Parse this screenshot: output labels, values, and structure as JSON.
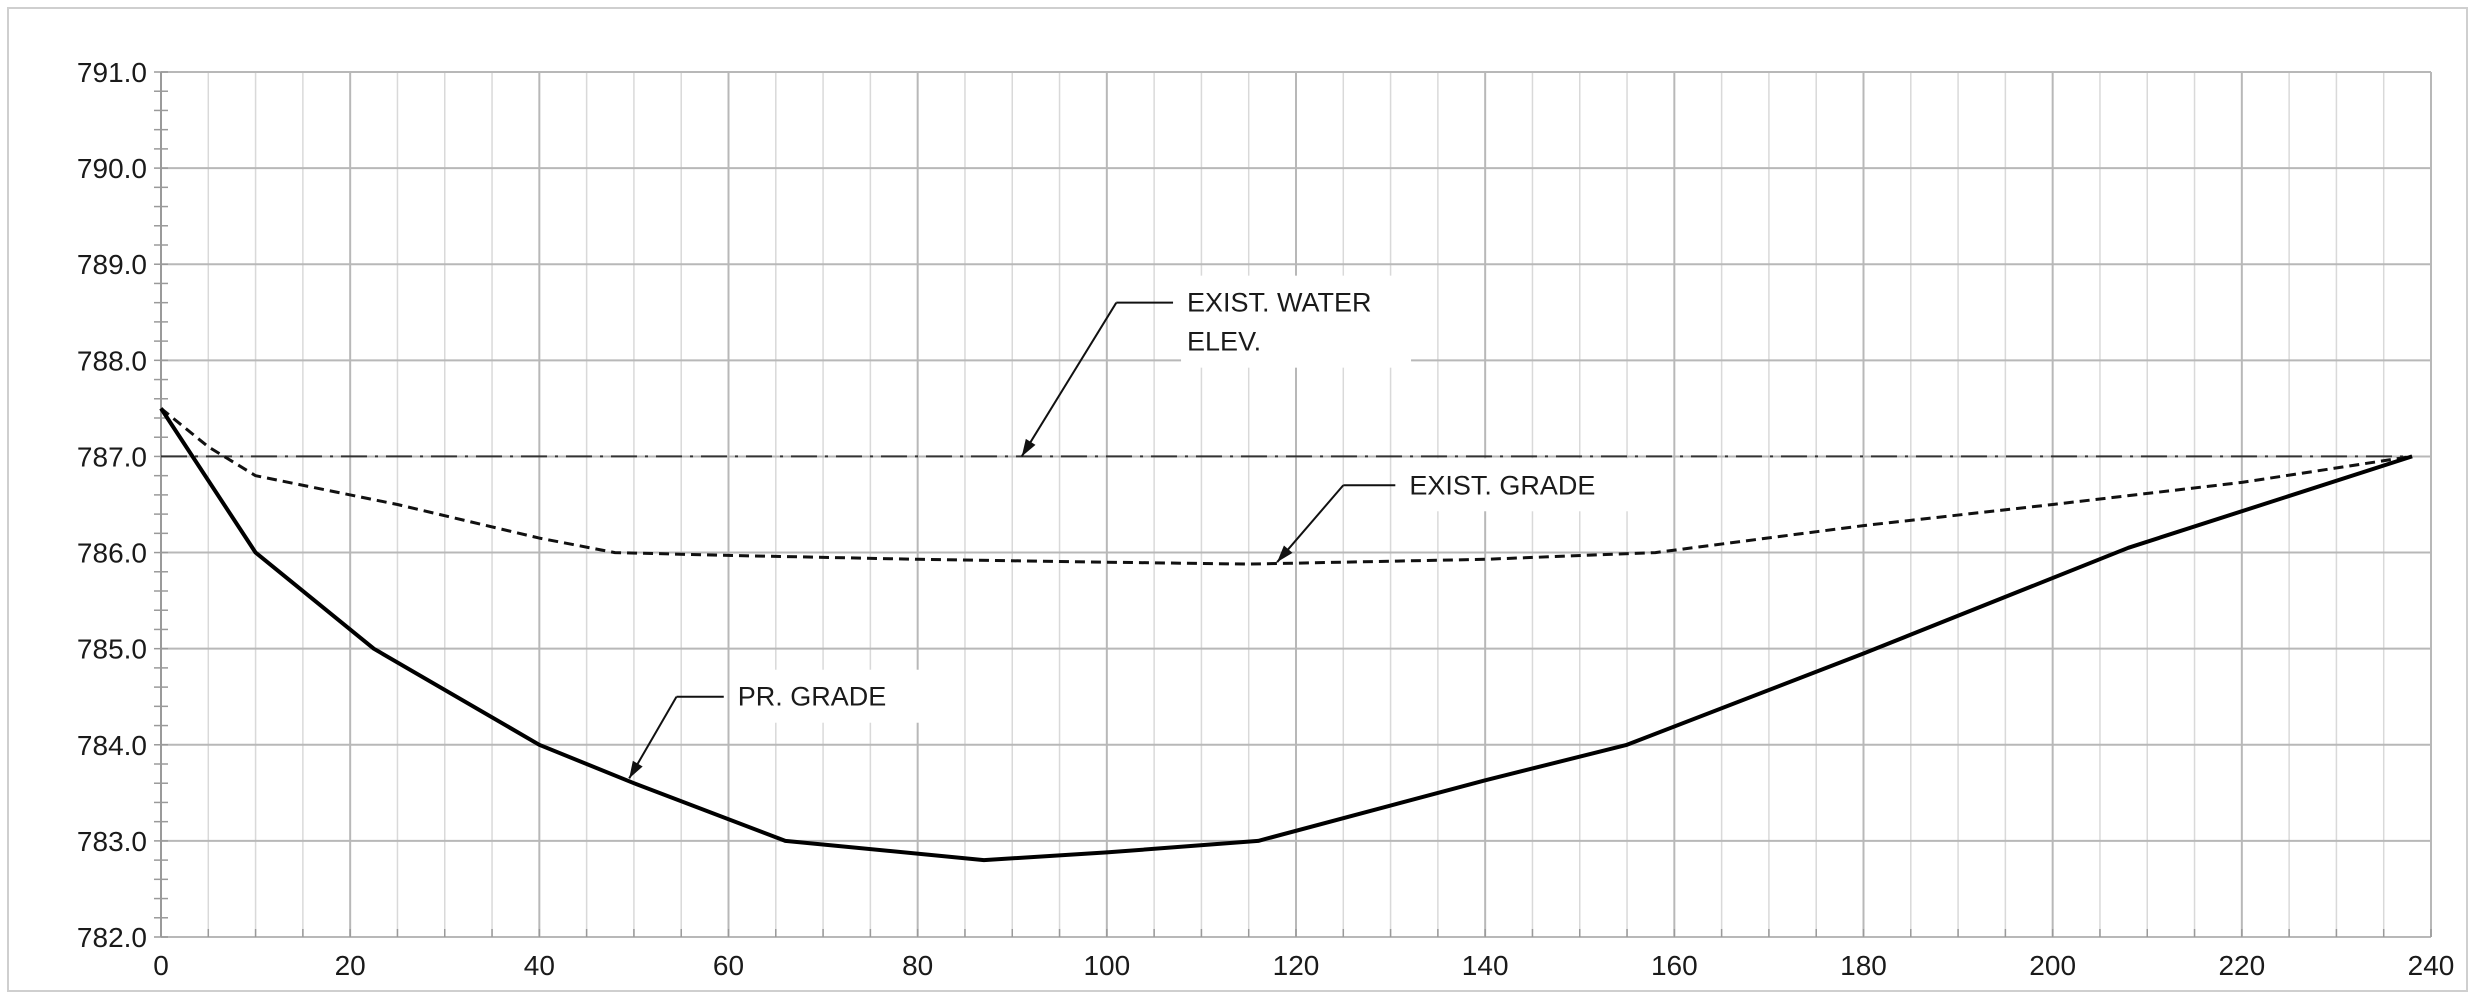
{
  "chart_data": {
    "type": "line",
    "title": "",
    "xlabel": "",
    "ylabel": "",
    "xlim": [
      0,
      240
    ],
    "ylim": [
      782.0,
      791.0
    ],
    "grid": true,
    "x_ticks": [
      "0",
      "20",
      "40",
      "60",
      "80",
      "100",
      "120",
      "140",
      "160",
      "180",
      "200",
      "220",
      "240"
    ],
    "y_ticks": [
      "782.0",
      "783.0",
      "784.0",
      "785.0",
      "786.0",
      "787.0",
      "788.0",
      "789.0",
      "790.0",
      "791.0"
    ],
    "series": [
      {
        "name": "EXIST. WATER ELEV.",
        "style": "dash-dot",
        "color": "#333333",
        "x": [
          0,
          238
        ],
        "y": [
          787.0,
          787.0
        ]
      },
      {
        "name": "EXIST. GRADE",
        "style": "dashed",
        "color": "#111111",
        "x": [
          0,
          5,
          10,
          25,
          40,
          48,
          60,
          80,
          100,
          115,
          140,
          158,
          180,
          200,
          220,
          238
        ],
        "y": [
          787.5,
          787.1,
          786.8,
          786.5,
          786.15,
          786.0,
          785.97,
          785.93,
          785.9,
          785.88,
          785.93,
          786.0,
          786.28,
          786.5,
          786.73,
          787.0
        ]
      },
      {
        "name": "PR. GRADE",
        "style": "solid",
        "color": "#000000",
        "x": [
          0,
          10,
          22.5,
          40,
          50,
          66,
          87,
          100,
          116,
          140,
          155,
          180,
          208,
          238
        ],
        "y": [
          787.5,
          786.0,
          785.0,
          784.0,
          783.6,
          783.0,
          782.8,
          782.88,
          783.0,
          783.63,
          784.0,
          784.95,
          786.05,
          787.0
        ]
      }
    ],
    "annotations": [
      {
        "lines": [
          "EXIST. WATER",
          "ELEV."
        ],
        "target": [
          91,
          787.0
        ],
        "elbow": [
          101,
          788.6
        ],
        "shelf_end": [
          107,
          788.6
        ]
      },
      {
        "lines": [
          "EXIST. GRADE"
        ],
        "target": [
          118,
          785.9
        ],
        "elbow": [
          125,
          786.7
        ],
        "shelf_end": [
          130.5,
          786.7
        ]
      },
      {
        "lines": [
          "PR. GRADE"
        ],
        "target": [
          49.5,
          783.65
        ],
        "elbow": [
          54.5,
          784.5
        ],
        "shelf_end": [
          59.5,
          784.5
        ]
      }
    ]
  }
}
